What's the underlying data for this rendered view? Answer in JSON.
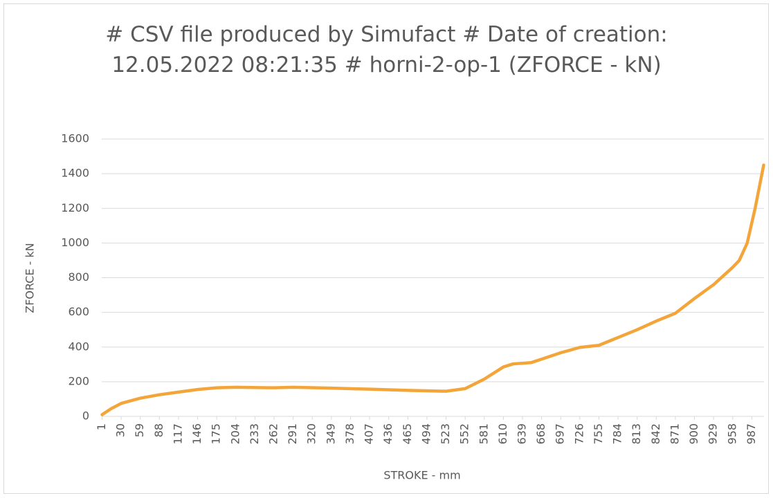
{
  "chart_data": {
    "type": "line",
    "title": "# CSV file produced by Simufact # Date of creation: 12.05.2022 08:21:35 # horni-2-op-1 (ZFORCE - kN)",
    "x_label": "STROKE - mm",
    "y_label": "ZFORCE - kN",
    "x": [
      1,
      15,
      30,
      59,
      88,
      117,
      146,
      175,
      204,
      262,
      291,
      349,
      407,
      465,
      523,
      552,
      581,
      610,
      625,
      652,
      668,
      697,
      726,
      755,
      784,
      813,
      842,
      871,
      900,
      929,
      958,
      968,
      980,
      992,
      1005
    ],
    "series": [
      {
        "name": "ZFORCE - kN",
        "color": "#f4a53a",
        "values": [
          10,
          45,
          75,
          105,
          125,
          140,
          155,
          165,
          168,
          165,
          168,
          163,
          157,
          150,
          145,
          160,
          215,
          285,
          303,
          310,
          330,
          367,
          398,
          410,
          455,
          500,
          550,
          595,
          680,
          760,
          860,
          900,
          1000,
          1200,
          1450
        ]
      }
    ],
    "xlim": [
      0.5,
      1005.5
    ],
    "xticks": [
      1,
      30,
      59,
      88,
      117,
      146,
      175,
      204,
      233,
      262,
      291,
      320,
      349,
      378,
      407,
      436,
      465,
      494,
      523,
      552,
      581,
      610,
      639,
      668,
      697,
      726,
      755,
      784,
      813,
      842,
      871,
      900,
      929,
      958,
      987
    ],
    "ylim": [
      0,
      1600
    ],
    "yticks": [
      0,
      200,
      400,
      600,
      800,
      1000,
      1200,
      1400,
      1600
    ],
    "grid": true
  }
}
